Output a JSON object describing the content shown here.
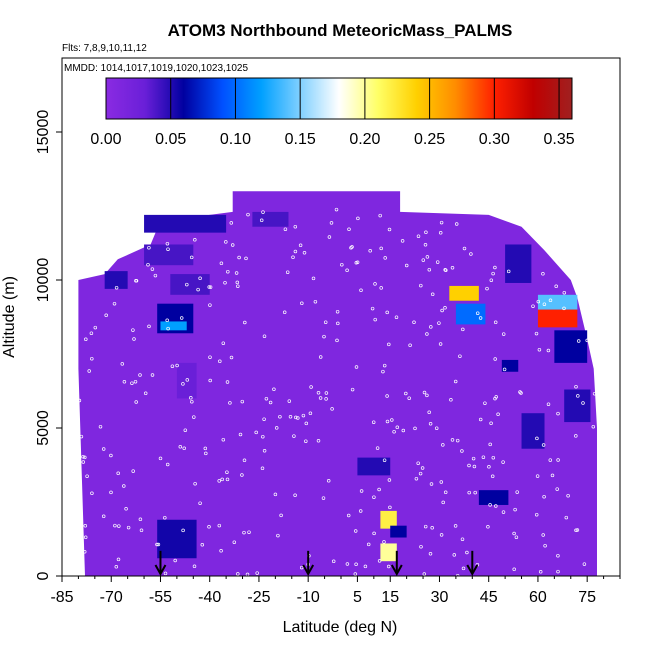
{
  "chart_data": {
    "type": "heatmap",
    "title": "ATOM3 Northbound MeteoricMass_PALMS",
    "flights_note": "Flts: 7,8,9,10,11,12",
    "dates_note": "MMDD: 1014,1017,1019,1020,1023,1025",
    "xlabel": "Latitude (deg N)",
    "ylabel": "Altitude (m)",
    "xlim": [
      -85,
      85
    ],
    "ylim": [
      0,
      17500
    ],
    "x_ticks": [
      -85,
      -70,
      -55,
      -40,
      -25,
      -10,
      5,
      15,
      30,
      45,
      60,
      75
    ],
    "y_ticks": [
      0,
      5000,
      10000,
      15000
    ],
    "colorbar": {
      "min": 0,
      "max": 0.36,
      "ticks": [
        0.0,
        0.05,
        0.1,
        0.15,
        0.2,
        0.25,
        0.3,
        0.35
      ],
      "tick_labels": [
        "0.00",
        "0.05",
        "0.10",
        "0.15",
        "0.20",
        "0.25",
        "0.30",
        "0.35"
      ],
      "colors": [
        "#8a2be2",
        "#6a1fd8",
        "#0000a0",
        "#0050ff",
        "#00a0ff",
        "#80d0ff",
        "#ffffff",
        "#ffff66",
        "#ffd000",
        "#ff8c00",
        "#ff2000",
        "#c00000",
        "#a02020"
      ]
    },
    "background_value": 0.01,
    "sampled_region_altitude_max_m": 13000,
    "outline": [
      [
        -78,
        0
      ],
      [
        -80,
        7000
      ],
      [
        -80,
        10000
      ],
      [
        -72,
        10200
      ],
      [
        -68,
        10700
      ],
      [
        -58,
        11200
      ],
      [
        -55,
        12000
      ],
      [
        -40,
        12200
      ],
      [
        -33,
        12300
      ],
      [
        -33,
        13000
      ],
      [
        -5,
        13000
      ],
      [
        18,
        13000
      ],
      [
        18,
        12300
      ],
      [
        45,
        12200
      ],
      [
        55,
        11800
      ],
      [
        62,
        11000
      ],
      [
        70,
        10000
      ],
      [
        72,
        9400
      ],
      [
        75,
        8000
      ],
      [
        77,
        7000
      ],
      [
        78,
        5000
      ],
      [
        78,
        0
      ]
    ],
    "enhancements": [
      {
        "lat": [
          -56,
          -44
        ],
        "alt": [
          600,
          1900
        ],
        "value": 0.055
      },
      {
        "lat": [
          -56,
          -45
        ],
        "alt": [
          8200,
          9200
        ],
        "value": 0.06
      },
      {
        "lat": [
          -55,
          -47
        ],
        "alt": [
          8300,
          8600
        ],
        "value": 0.12
      },
      {
        "lat": [
          -52,
          -40
        ],
        "alt": [
          9500,
          10200
        ],
        "value": 0.04
      },
      {
        "lat": [
          -60,
          -35
        ],
        "alt": [
          11600,
          12200
        ],
        "value": 0.05
      },
      {
        "lat": [
          -60,
          -45
        ],
        "alt": [
          10500,
          11200
        ],
        "value": 0.04
      },
      {
        "lat": [
          -50,
          -44
        ],
        "alt": [
          6000,
          7200
        ],
        "value": 0.03
      },
      {
        "lat": [
          -72,
          -65
        ],
        "alt": [
          9700,
          10300
        ],
        "value": 0.05
      },
      {
        "lat": [
          -27,
          -16
        ],
        "alt": [
          11800,
          12300
        ],
        "value": 0.04
      },
      {
        "lat": [
          5,
          15
        ],
        "alt": [
          3400,
          4000
        ],
        "value": 0.05
      },
      {
        "lat": [
          12,
          17
        ],
        "alt": [
          1600,
          2200
        ],
        "value": 0.22
      },
      {
        "lat": [
          12,
          17
        ],
        "alt": [
          500,
          1100
        ],
        "value": 0.2
      },
      {
        "lat": [
          15,
          20
        ],
        "alt": [
          1300,
          1700
        ],
        "value": 0.06
      },
      {
        "lat": [
          33,
          42
        ],
        "alt": [
          9300,
          9800
        ],
        "value": 0.24
      },
      {
        "lat": [
          35,
          44
        ],
        "alt": [
          8500,
          9200
        ],
        "value": 0.1
      },
      {
        "lat": [
          42,
          51
        ],
        "alt": [
          2400,
          2900
        ],
        "value": 0.06
      },
      {
        "lat": [
          50,
          58
        ],
        "alt": [
          9900,
          11200
        ],
        "value": 0.05
      },
      {
        "lat": [
          60,
          72
        ],
        "alt": [
          9000,
          9500
        ],
        "value": 0.14
      },
      {
        "lat": [
          60,
          72
        ],
        "alt": [
          8400,
          9000
        ],
        "value": 0.3
      },
      {
        "lat": [
          65,
          75
        ],
        "alt": [
          7200,
          8300
        ],
        "value": 0.06
      },
      {
        "lat": [
          68,
          76
        ],
        "alt": [
          5200,
          6300
        ],
        "value": 0.05
      },
      {
        "lat": [
          55,
          62
        ],
        "alt": [
          4300,
          5500
        ],
        "value": 0.05
      },
      {
        "lat": [
          49,
          54
        ],
        "alt": [
          6900,
          7300
        ],
        "value": 0.06
      }
    ],
    "arrows_lat": [
      -55,
      -10,
      17,
      40
    ]
  }
}
